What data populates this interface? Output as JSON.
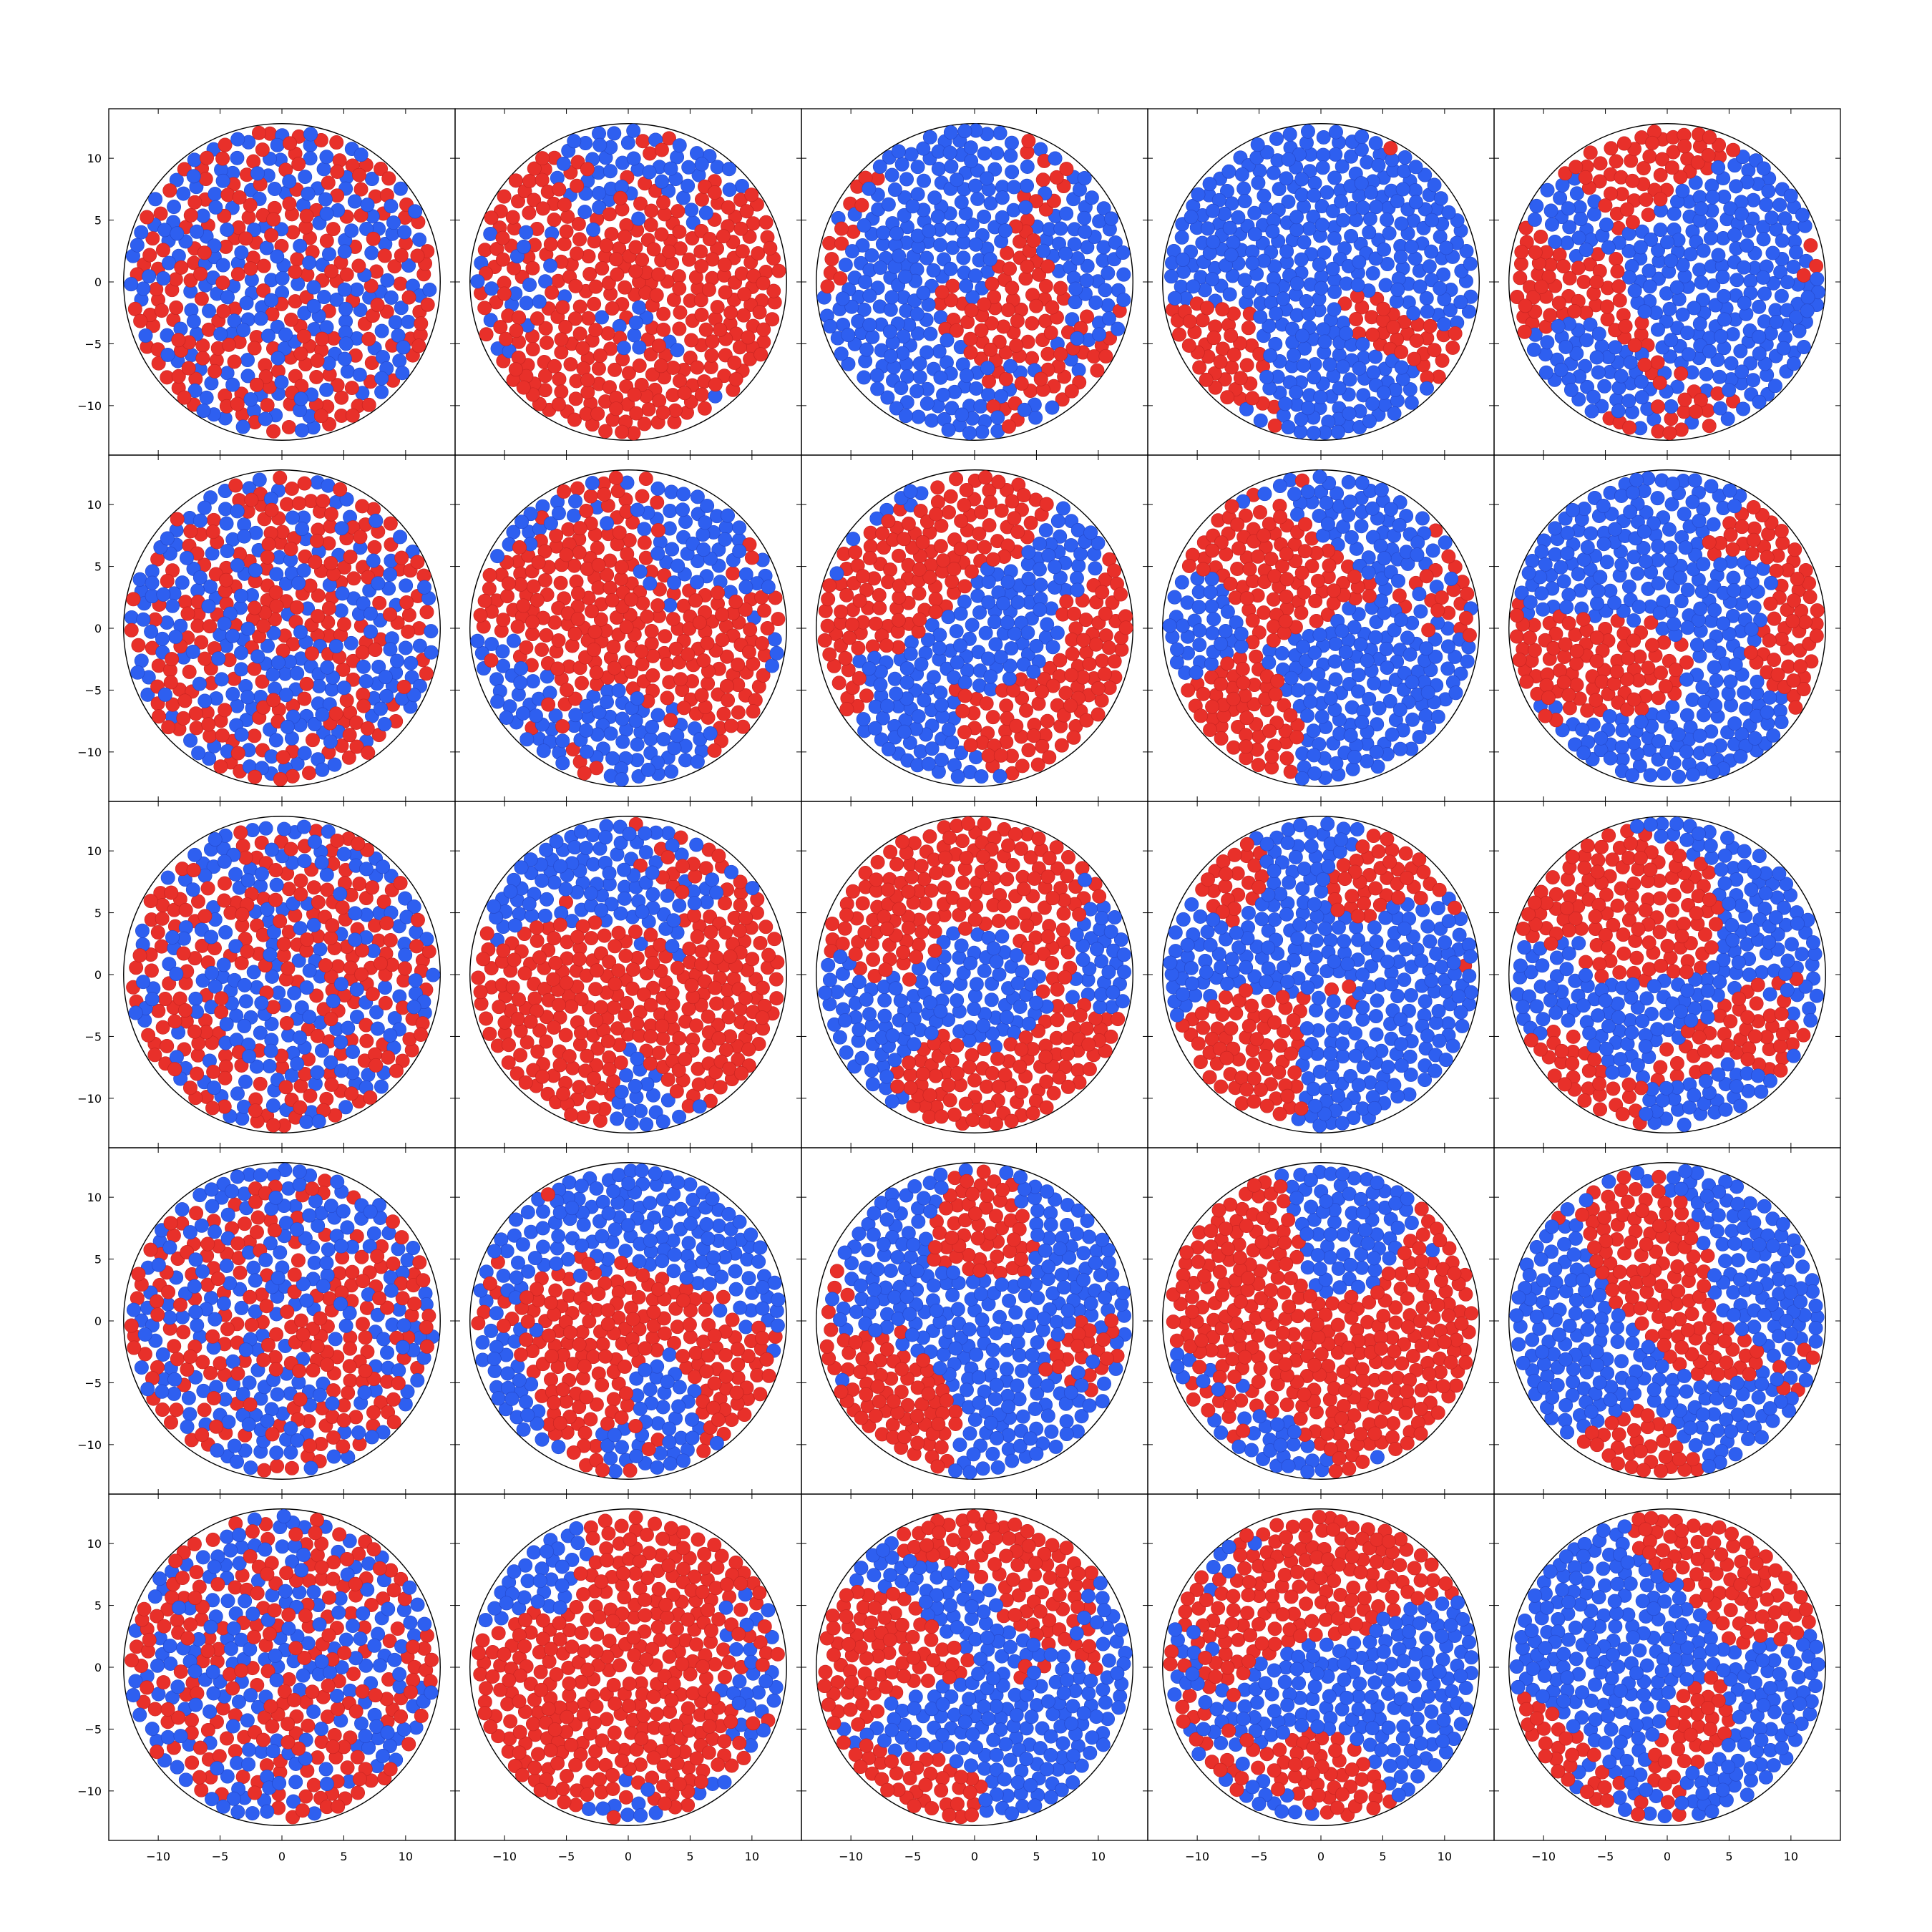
{
  "chart_data": {
    "type": "scatter",
    "layout": {
      "rows": 5,
      "cols": 5
    },
    "xlim": [
      -14,
      14
    ],
    "ylim": [
      -14,
      14
    ],
    "circle": {
      "center": [
        0,
        0
      ],
      "radius": 12.8
    },
    "xticks": [
      -10,
      -5,
      0,
      5,
      10
    ],
    "yticks": [
      -10,
      -5,
      0,
      5,
      10
    ],
    "xtick_labels": [
      "−10",
      "−5",
      "0",
      "5",
      "10"
    ],
    "ytick_labels": [
      "−10",
      "−5",
      "0",
      "5",
      "10"
    ],
    "grid": false,
    "legend": "none",
    "title": "",
    "xlabel": "",
    "ylabel": "",
    "series_colors": {
      "red": "#e8302a",
      "blue": "#2e5ff0"
    },
    "marker_radius_data": 0.56,
    "points_per_panel": 650,
    "panel_red_fraction": 0.5,
    "panel_seeds": [
      11,
      23,
      37,
      41,
      53,
      67,
      71,
      83,
      97,
      101,
      113,
      127,
      131,
      149,
      151,
      163,
      173,
      181,
      191,
      199,
      211,
      223,
      227,
      239,
      241
    ],
    "panel_clustering": [
      0.0,
      0.55,
      0.75,
      0.85,
      0.9,
      0.05,
      0.6,
      0.8,
      0.88,
      0.92,
      0.1,
      0.65,
      0.82,
      0.88,
      0.92,
      0.1,
      0.7,
      0.84,
      0.9,
      0.93,
      0.15,
      0.72,
      0.85,
      0.9,
      0.93
    ]
  }
}
